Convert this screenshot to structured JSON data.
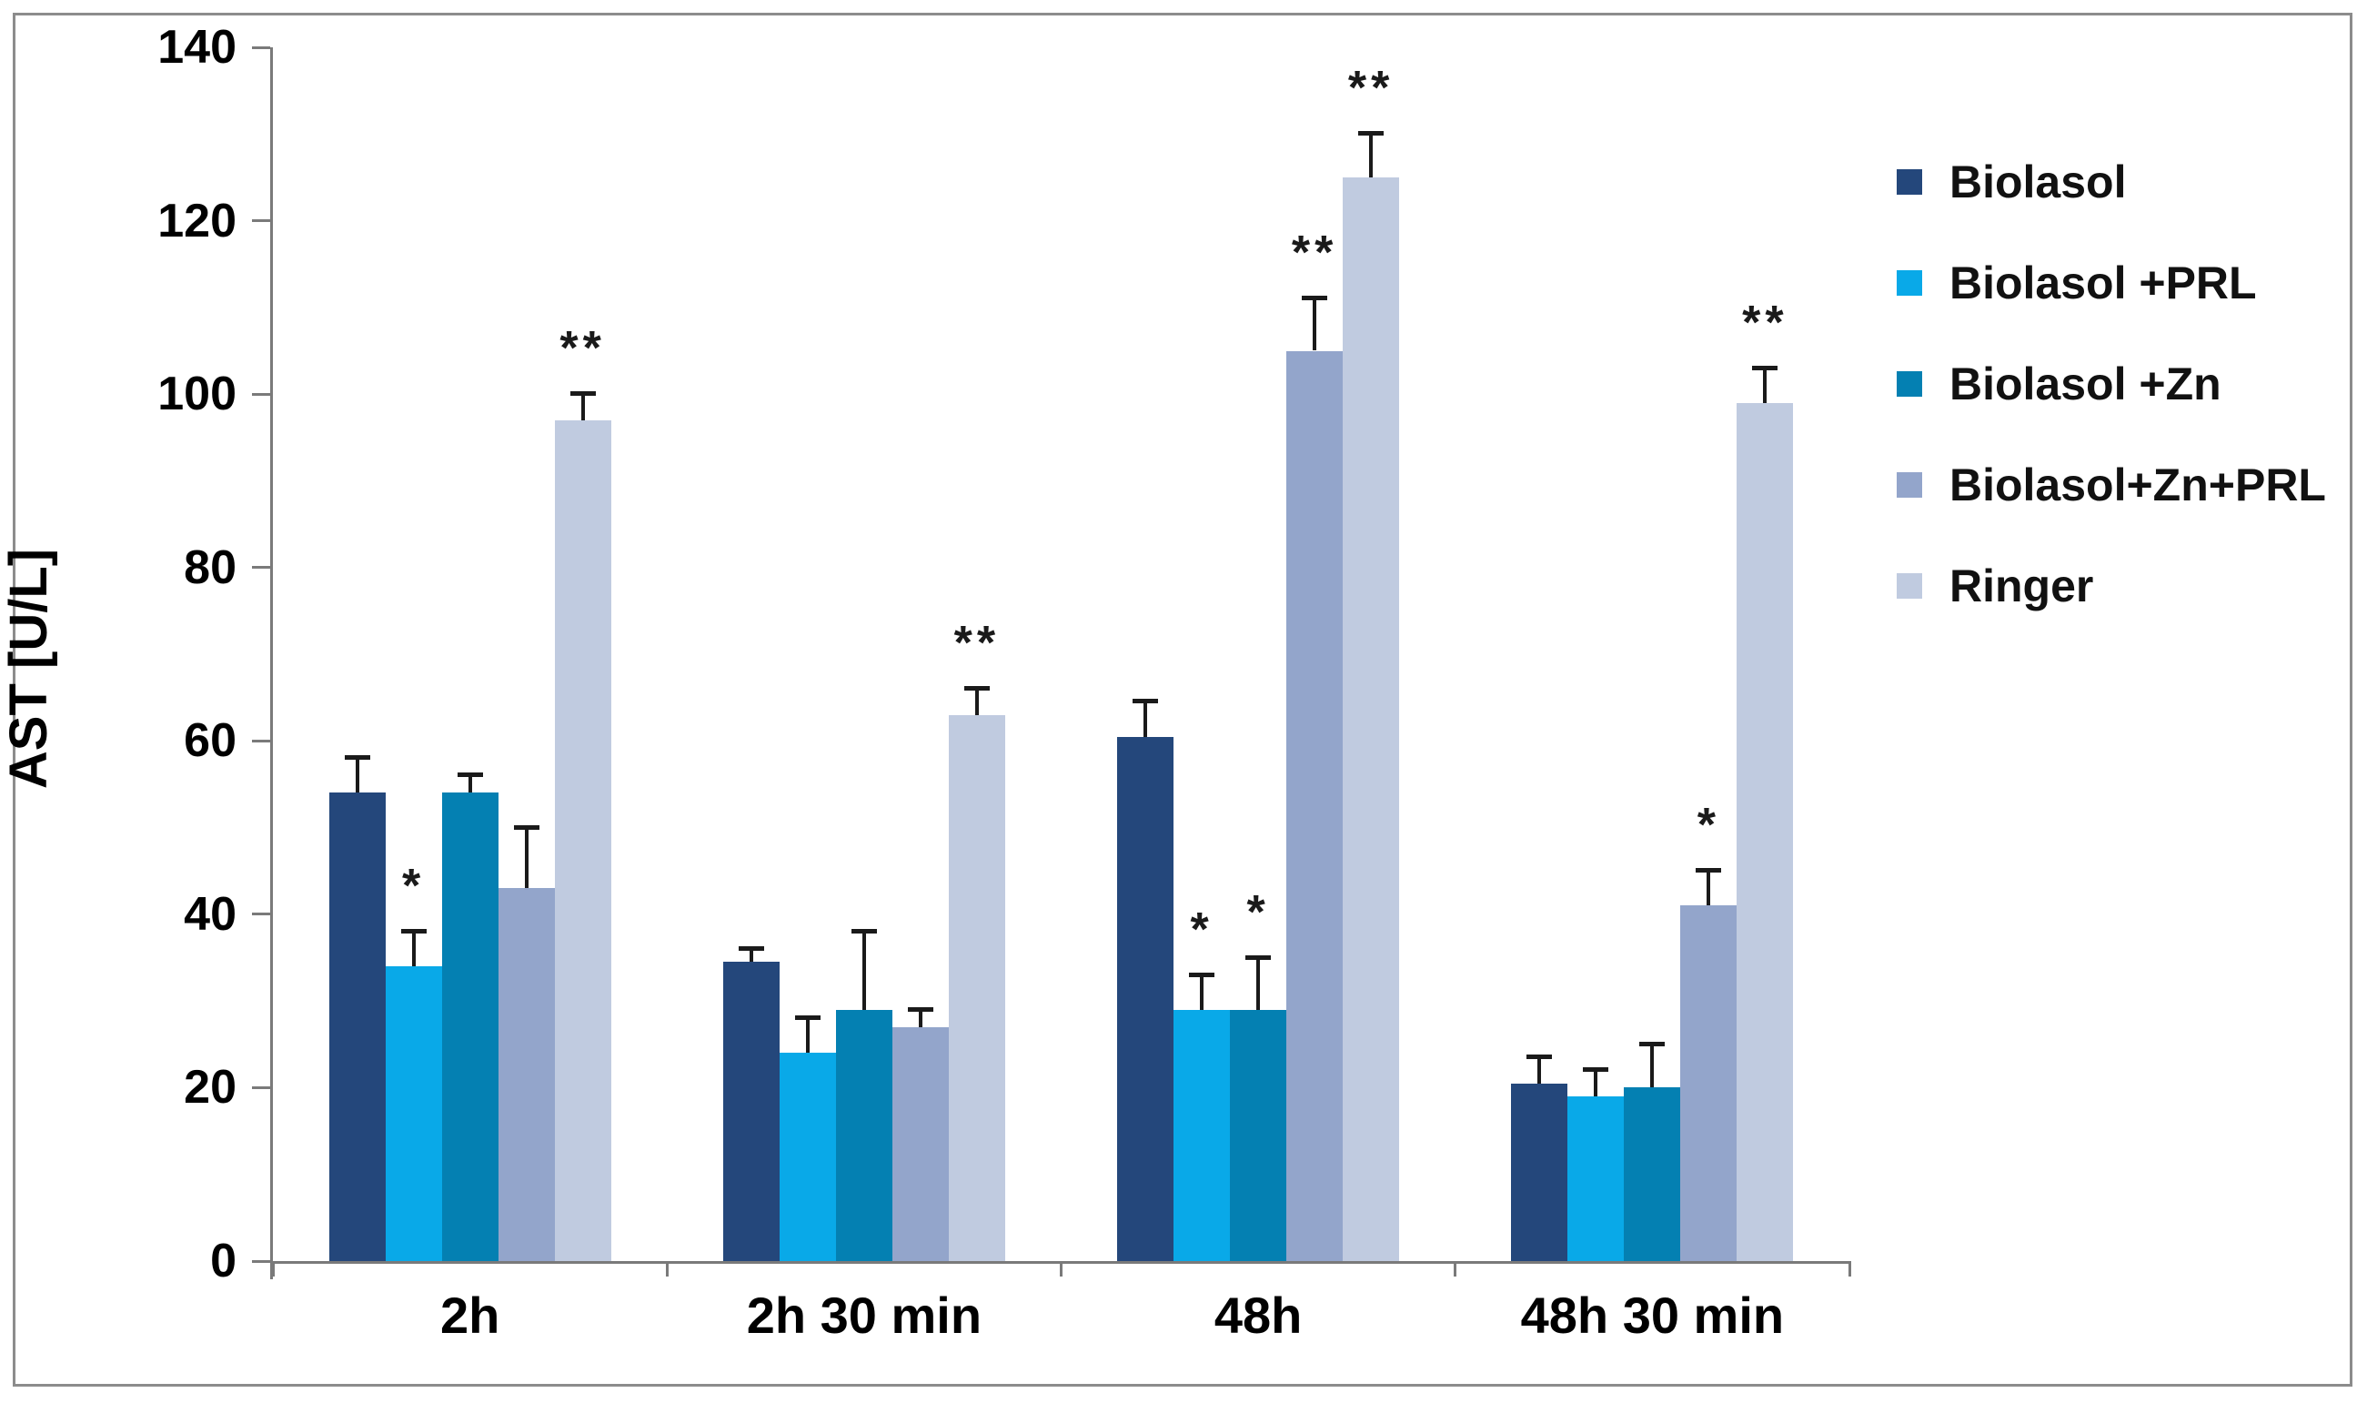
{
  "figure": {
    "background": "#ffffff",
    "frame_color": "#8c8c8c",
    "axis_color": "#7a7a7a",
    "error_bar_color": "#1a1a1a"
  },
  "chart_data": {
    "type": "bar",
    "title": "",
    "xlabel": "",
    "ylabel": "AST [U/L]",
    "ylim": [
      0,
      140
    ],
    "ytick_step": 20,
    "ytick_labels": [
      "0",
      "20",
      "40",
      "60",
      "80",
      "100",
      "120",
      "140"
    ],
    "grid": false,
    "legend_position": "right",
    "error_bars": "upper-only",
    "significance_note": "asterisks above bars mark statistical significance",
    "categories": [
      "2h",
      "2h 30 min",
      "48h",
      "48h 30 min"
    ],
    "series": [
      {
        "name": "Biolasol",
        "color": "#24477B",
        "values": [
          54,
          34.5,
          60.5,
          20.5
        ],
        "errors_plus": [
          4,
          1.5,
          4,
          3
        ],
        "significance": [
          "",
          "",
          "",
          ""
        ]
      },
      {
        "name": "Biolasol +PRL",
        "color": "#09A9E8",
        "values": [
          34,
          24,
          29,
          19
        ],
        "errors_plus": [
          4,
          4,
          4,
          3
        ],
        "significance": [
          "*",
          "",
          "*",
          ""
        ]
      },
      {
        "name": "Biolasol +Zn",
        "color": "#0480B2",
        "values": [
          54,
          29,
          29,
          20
        ],
        "errors_plus": [
          2,
          9,
          6,
          5
        ],
        "significance": [
          "",
          "",
          "*",
          ""
        ]
      },
      {
        "name": "Biolasol+Zn+PRL",
        "color": "#93A5CB",
        "values": [
          43,
          27,
          105,
          41
        ],
        "errors_plus": [
          7,
          2,
          6,
          4
        ],
        "significance": [
          "",
          "",
          "**",
          "*"
        ]
      },
      {
        "name": "Ringer",
        "color": "#C0CBE0",
        "values": [
          97,
          63,
          125,
          99
        ],
        "errors_plus": [
          3,
          3,
          5,
          4
        ],
        "significance": [
          "**",
          "**",
          "**",
          "**"
        ]
      }
    ]
  }
}
